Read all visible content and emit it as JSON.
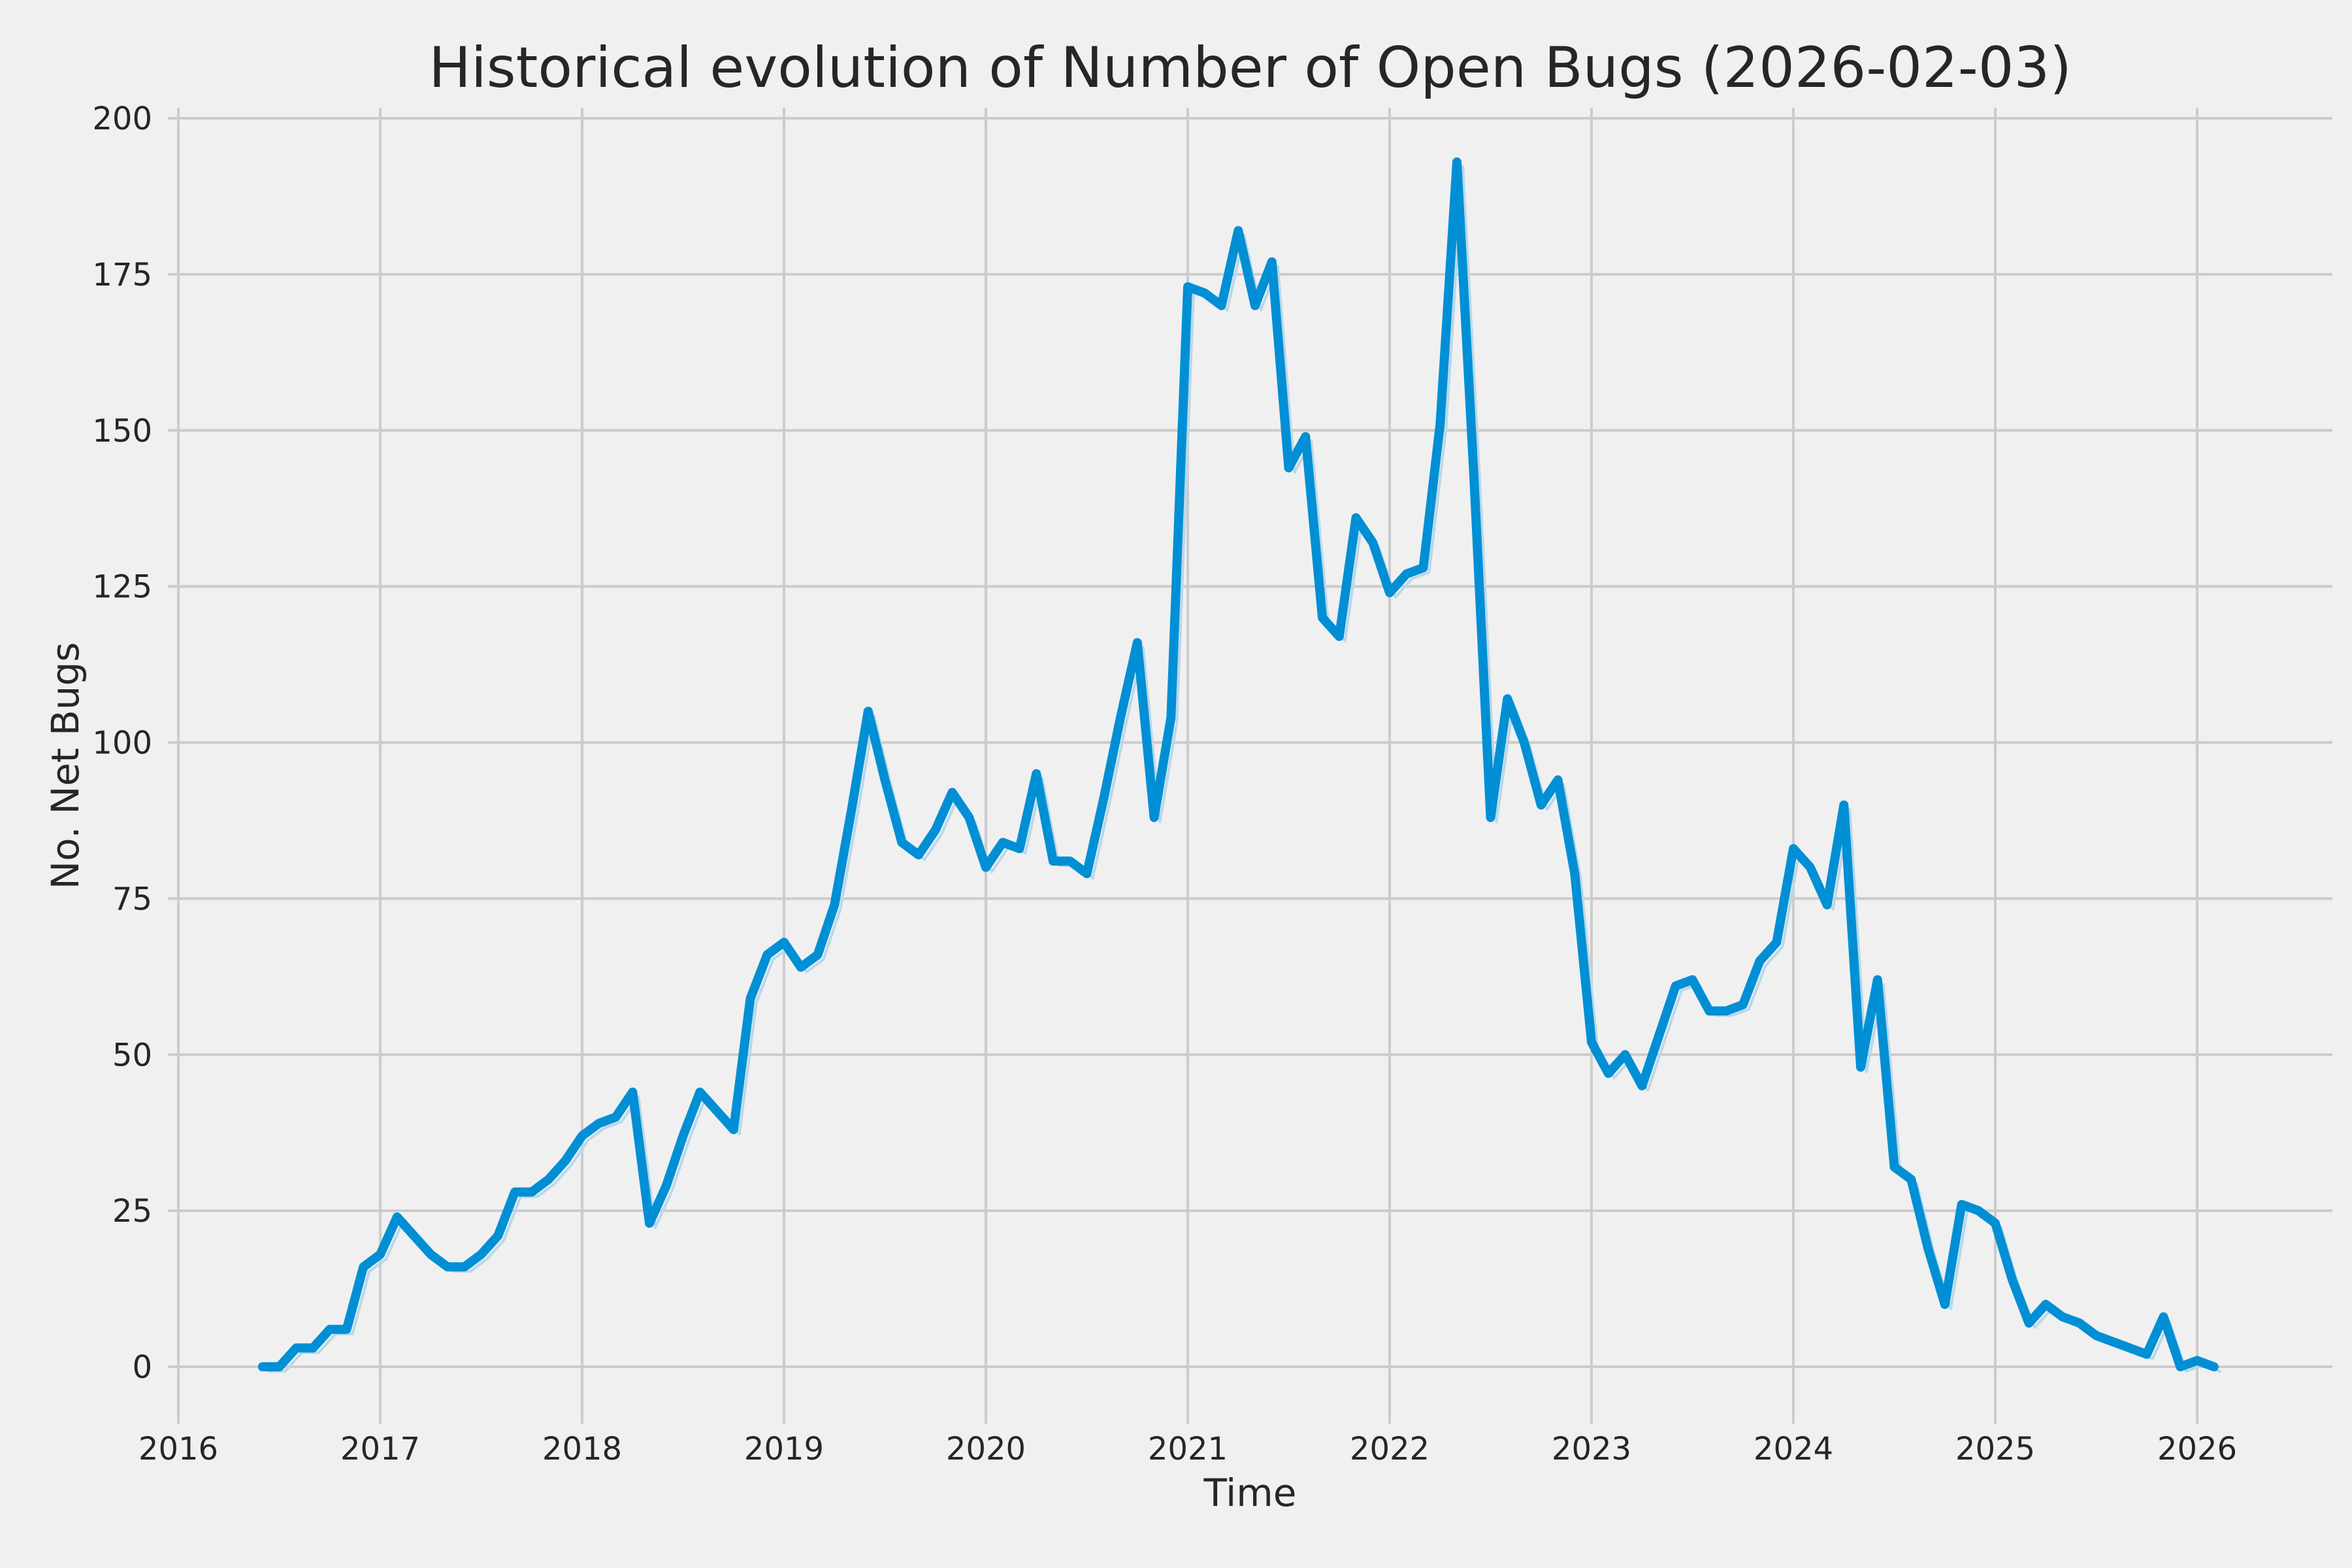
{
  "chart_data": {
    "type": "line",
    "title": "Historical evolution of Number of Open Bugs (2026-02-03)",
    "xlabel": "Time",
    "ylabel": "No. Net Bugs",
    "grid": true,
    "legend": false,
    "ylim": [
      0,
      200
    ],
    "xlim_years": [
      2016,
      2026.2
    ],
    "xticks": [
      2016,
      2017,
      2018,
      2019,
      2020,
      2021,
      2022,
      2023,
      2024,
      2025,
      2026
    ],
    "yticks": [
      0,
      25,
      50,
      75,
      100,
      125,
      150,
      175,
      200
    ],
    "x": [
      "2016-06",
      "2016-07",
      "2016-08",
      "2016-09",
      "2016-10",
      "2016-11",
      "2016-12",
      "2017-01",
      "2017-02",
      "2017-03",
      "2017-04",
      "2017-05",
      "2017-06",
      "2017-07",
      "2017-08",
      "2017-09",
      "2017-10",
      "2017-11",
      "2017-12",
      "2018-01",
      "2018-02",
      "2018-03",
      "2018-04",
      "2018-05",
      "2018-06",
      "2018-07",
      "2018-08",
      "2018-09",
      "2018-10",
      "2018-11",
      "2018-12",
      "2019-01",
      "2019-02",
      "2019-03",
      "2019-04",
      "2019-05",
      "2019-06",
      "2019-07",
      "2019-08",
      "2019-09",
      "2019-10",
      "2019-11",
      "2019-12",
      "2020-01",
      "2020-02",
      "2020-03",
      "2020-04",
      "2020-05",
      "2020-06",
      "2020-07",
      "2020-08",
      "2020-09",
      "2020-10",
      "2020-11",
      "2020-12",
      "2021-01",
      "2021-02",
      "2021-03",
      "2021-04",
      "2021-05",
      "2021-06",
      "2021-07",
      "2021-08",
      "2021-09",
      "2021-10",
      "2021-11",
      "2021-12",
      "2022-01",
      "2022-02",
      "2022-03",
      "2022-04",
      "2022-05",
      "2022-06",
      "2022-07",
      "2022-08",
      "2022-09",
      "2022-10",
      "2022-11",
      "2022-12",
      "2023-01",
      "2023-02",
      "2023-03",
      "2023-04",
      "2023-05",
      "2023-06",
      "2023-07",
      "2023-08",
      "2023-09",
      "2023-10",
      "2023-11",
      "2023-12",
      "2024-01",
      "2024-02",
      "2024-03",
      "2024-04",
      "2024-05",
      "2024-06",
      "2024-07",
      "2024-08",
      "2024-09",
      "2024-10",
      "2024-11",
      "2024-12",
      "2025-01",
      "2025-02",
      "2025-03",
      "2025-04",
      "2025-05",
      "2025-06",
      "2025-07",
      "2025-08",
      "2025-09",
      "2025-10",
      "2025-11",
      "2025-12",
      "2026-01",
      "2026-02"
    ],
    "series": [
      {
        "name": "No. Net Bugs",
        "values": [
          0,
          0,
          3,
          3,
          6,
          6,
          16,
          18,
          24,
          21,
          18,
          16,
          16,
          18,
          21,
          28,
          28,
          30,
          33,
          37,
          39,
          40,
          44,
          23,
          29,
          37,
          44,
          41,
          38,
          59,
          66,
          68,
          64,
          66,
          74,
          89,
          105,
          94,
          84,
          82,
          86,
          92,
          88,
          80,
          84,
          83,
          95,
          81,
          81,
          79,
          91,
          104,
          116,
          88,
          104,
          173,
          172,
          170,
          182,
          170,
          177,
          144,
          149,
          120,
          117,
          136,
          132,
          124,
          127,
          128,
          151,
          193,
          143,
          88,
          107,
          100,
          90,
          94,
          79,
          52,
          47,
          50,
          45,
          53,
          61,
          62,
          57,
          57,
          58,
          65,
          68,
          83,
          80,
          74,
          90,
          48,
          62,
          32,
          30,
          19,
          10,
          26,
          25,
          23,
          14,
          7,
          10,
          8,
          7,
          5,
          4,
          3,
          2,
          8,
          0,
          1,
          0
        ]
      }
    ],
    "colors": {
      "line": "#008fd5",
      "line_echo": "#b9d8ea",
      "background": "#f0f0f0",
      "grid": "#cbcbcb",
      "text": "#262626"
    }
  }
}
